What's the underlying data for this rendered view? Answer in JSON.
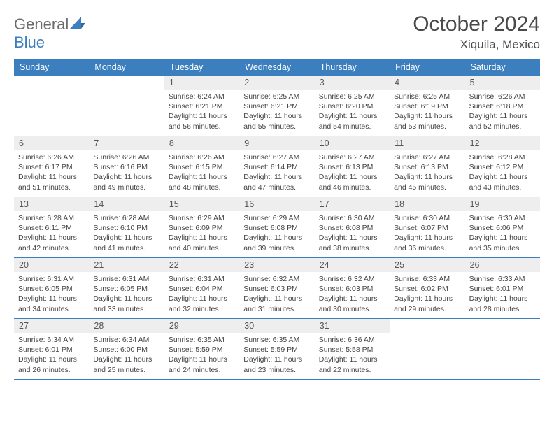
{
  "logo": {
    "text1": "General",
    "text2": "Blue"
  },
  "title": "October 2024",
  "location": "Xiquila, Mexico",
  "colors": {
    "header_bg": "#3b7fbf",
    "daynum_bg": "#eeeeee",
    "border": "#3b7fbf",
    "text": "#444444"
  },
  "dayHeaders": [
    "Sunday",
    "Monday",
    "Tuesday",
    "Wednesday",
    "Thursday",
    "Friday",
    "Saturday"
  ],
  "weeks": [
    [
      {
        "n": "",
        "empty": true
      },
      {
        "n": "",
        "empty": true
      },
      {
        "n": "1",
        "sr": "6:24 AM",
        "ss": "6:21 PM",
        "dl": "11 hours and 56 minutes."
      },
      {
        "n": "2",
        "sr": "6:25 AM",
        "ss": "6:21 PM",
        "dl": "11 hours and 55 minutes."
      },
      {
        "n": "3",
        "sr": "6:25 AM",
        "ss": "6:20 PM",
        "dl": "11 hours and 54 minutes."
      },
      {
        "n": "4",
        "sr": "6:25 AM",
        "ss": "6:19 PM",
        "dl": "11 hours and 53 minutes."
      },
      {
        "n": "5",
        "sr": "6:26 AM",
        "ss": "6:18 PM",
        "dl": "11 hours and 52 minutes."
      }
    ],
    [
      {
        "n": "6",
        "sr": "6:26 AM",
        "ss": "6:17 PM",
        "dl": "11 hours and 51 minutes."
      },
      {
        "n": "7",
        "sr": "6:26 AM",
        "ss": "6:16 PM",
        "dl": "11 hours and 49 minutes."
      },
      {
        "n": "8",
        "sr": "6:26 AM",
        "ss": "6:15 PM",
        "dl": "11 hours and 48 minutes."
      },
      {
        "n": "9",
        "sr": "6:27 AM",
        "ss": "6:14 PM",
        "dl": "11 hours and 47 minutes."
      },
      {
        "n": "10",
        "sr": "6:27 AM",
        "ss": "6:13 PM",
        "dl": "11 hours and 46 minutes."
      },
      {
        "n": "11",
        "sr": "6:27 AM",
        "ss": "6:13 PM",
        "dl": "11 hours and 45 minutes."
      },
      {
        "n": "12",
        "sr": "6:28 AM",
        "ss": "6:12 PM",
        "dl": "11 hours and 43 minutes."
      }
    ],
    [
      {
        "n": "13",
        "sr": "6:28 AM",
        "ss": "6:11 PM",
        "dl": "11 hours and 42 minutes."
      },
      {
        "n": "14",
        "sr": "6:28 AM",
        "ss": "6:10 PM",
        "dl": "11 hours and 41 minutes."
      },
      {
        "n": "15",
        "sr": "6:29 AM",
        "ss": "6:09 PM",
        "dl": "11 hours and 40 minutes."
      },
      {
        "n": "16",
        "sr": "6:29 AM",
        "ss": "6:08 PM",
        "dl": "11 hours and 39 minutes."
      },
      {
        "n": "17",
        "sr": "6:30 AM",
        "ss": "6:08 PM",
        "dl": "11 hours and 38 minutes."
      },
      {
        "n": "18",
        "sr": "6:30 AM",
        "ss": "6:07 PM",
        "dl": "11 hours and 36 minutes."
      },
      {
        "n": "19",
        "sr": "6:30 AM",
        "ss": "6:06 PM",
        "dl": "11 hours and 35 minutes."
      }
    ],
    [
      {
        "n": "20",
        "sr": "6:31 AM",
        "ss": "6:05 PM",
        "dl": "11 hours and 34 minutes."
      },
      {
        "n": "21",
        "sr": "6:31 AM",
        "ss": "6:05 PM",
        "dl": "11 hours and 33 minutes."
      },
      {
        "n": "22",
        "sr": "6:31 AM",
        "ss": "6:04 PM",
        "dl": "11 hours and 32 minutes."
      },
      {
        "n": "23",
        "sr": "6:32 AM",
        "ss": "6:03 PM",
        "dl": "11 hours and 31 minutes."
      },
      {
        "n": "24",
        "sr": "6:32 AM",
        "ss": "6:03 PM",
        "dl": "11 hours and 30 minutes."
      },
      {
        "n": "25",
        "sr": "6:33 AM",
        "ss": "6:02 PM",
        "dl": "11 hours and 29 minutes."
      },
      {
        "n": "26",
        "sr": "6:33 AM",
        "ss": "6:01 PM",
        "dl": "11 hours and 28 minutes."
      }
    ],
    [
      {
        "n": "27",
        "sr": "6:34 AM",
        "ss": "6:01 PM",
        "dl": "11 hours and 26 minutes."
      },
      {
        "n": "28",
        "sr": "6:34 AM",
        "ss": "6:00 PM",
        "dl": "11 hours and 25 minutes."
      },
      {
        "n": "29",
        "sr": "6:35 AM",
        "ss": "5:59 PM",
        "dl": "11 hours and 24 minutes."
      },
      {
        "n": "30",
        "sr": "6:35 AM",
        "ss": "5:59 PM",
        "dl": "11 hours and 23 minutes."
      },
      {
        "n": "31",
        "sr": "6:36 AM",
        "ss": "5:58 PM",
        "dl": "11 hours and 22 minutes."
      },
      {
        "n": "",
        "empty": true
      },
      {
        "n": "",
        "empty": true
      }
    ]
  ],
  "labels": {
    "sunrise": "Sunrise: ",
    "sunset": "Sunset: ",
    "daylight": "Daylight: "
  }
}
